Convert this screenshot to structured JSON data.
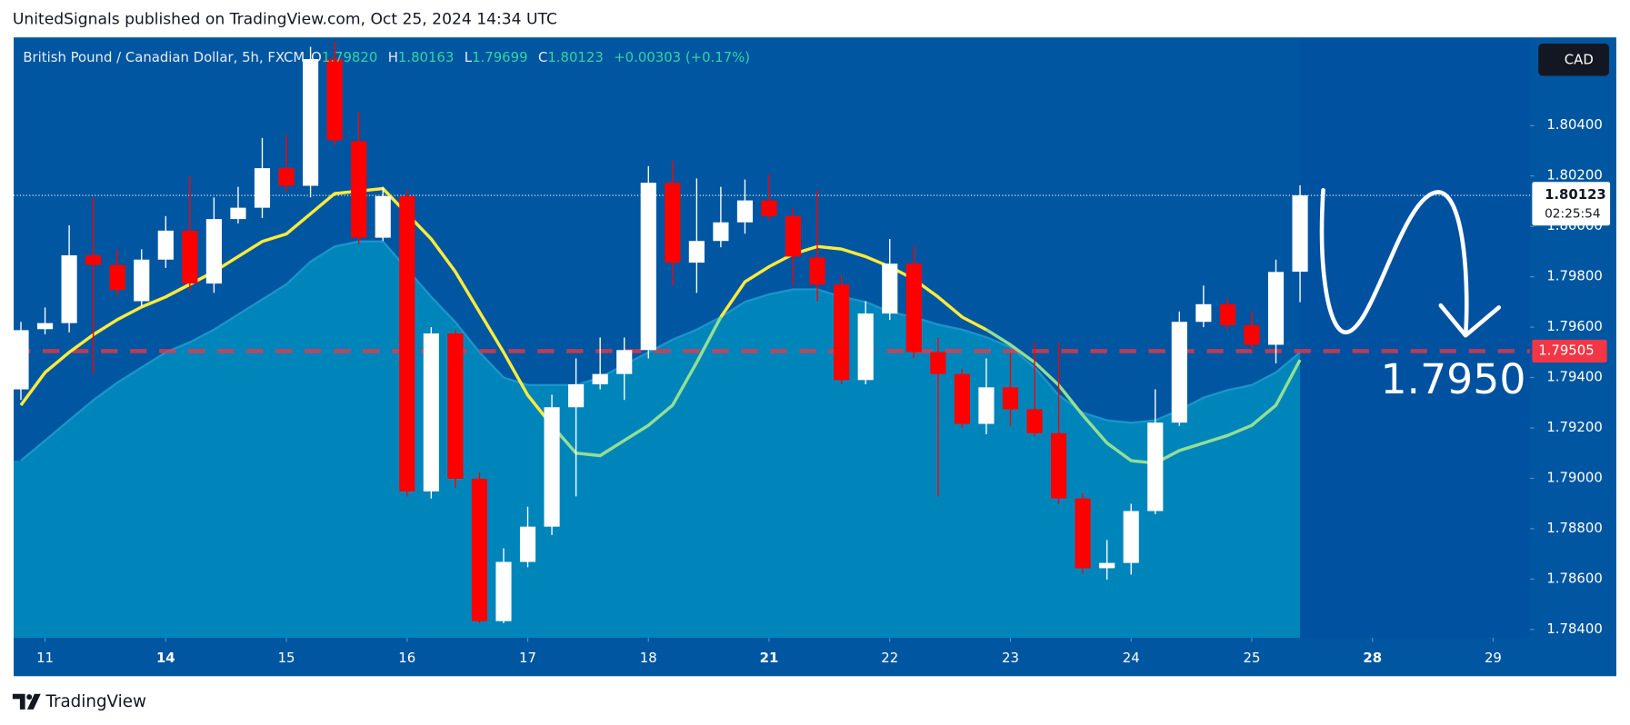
{
  "header": {
    "text": "UnitedSignals published on TradingView.com, Oct 25, 2024 14:34 UTC"
  },
  "footer": {
    "brand": "TradingView"
  },
  "chart_data": {
    "type": "candlestick",
    "legend": {
      "symbol": "British Pound / Canadian Dollar, 5h, FXCM",
      "fields": [
        {
          "key": "O",
          "value": "1.79820"
        },
        {
          "key": "H",
          "value": "1.80163"
        },
        {
          "key": "L",
          "value": "1.79699"
        },
        {
          "key": "C",
          "value": "1.80123"
        }
      ],
      "change": "+0.00303 (+0.17%)"
    },
    "currency": "CAD",
    "up_color": "#ffffff",
    "down_color": "#ff0000",
    "ohlc": [
      [
        1.79353,
        1.79621,
        1.79311,
        1.79588
      ],
      [
        1.79592,
        1.79678,
        1.79571,
        1.79616
      ],
      [
        1.79616,
        1.80004,
        1.79579,
        1.79885
      ],
      [
        1.79885,
        1.80115,
        1.79414,
        1.79847
      ],
      [
        1.79847,
        1.79909,
        1.79724,
        1.79748
      ],
      [
        1.79703,
        1.79909,
        1.79682,
        1.79868
      ],
      [
        1.79868,
        1.80041,
        1.79835,
        1.79983
      ],
      [
        1.79983,
        1.80198,
        1.79744,
        1.79773
      ],
      [
        1.79773,
        1.80115,
        1.79736,
        1.80029
      ],
      [
        1.80029,
        1.80157,
        1.80012,
        1.80074
      ],
      [
        1.80074,
        1.80351,
        1.80033,
        1.80231
      ],
      [
        1.80231,
        1.80363,
        1.80136,
        1.80161
      ],
      [
        1.80161,
        1.80713,
        1.80115,
        1.80664
      ],
      [
        1.80664,
        1.80734,
        1.80322,
        1.80342
      ],
      [
        1.80338,
        1.80454,
        1.7993,
        1.79955
      ],
      [
        1.79955,
        1.80157,
        1.79942,
        1.8012
      ],
      [
        1.8012,
        1.80144,
        1.78928,
        1.78948
      ],
      [
        1.78948,
        1.796,
        1.7892,
        1.79575
      ],
      [
        1.79575,
        1.79588,
        1.78961,
        1.78998
      ],
      [
        1.78998,
        1.79023,
        1.78425,
        1.78433
      ],
      [
        1.78433,
        1.78722,
        1.78425,
        1.78668
      ],
      [
        1.78668,
        1.78887,
        1.78647,
        1.78808
      ],
      [
        1.78808,
        1.79332,
        1.78775,
        1.79282
      ],
      [
        1.79282,
        1.79476,
        1.78928,
        1.79373
      ],
      [
        1.79373,
        1.79559,
        1.79353,
        1.79414
      ],
      [
        1.79414,
        1.79559,
        1.79311,
        1.79509
      ],
      [
        1.79509,
        1.80239,
        1.79476,
        1.80173
      ],
      [
        1.80173,
        1.8026,
        1.79765,
        1.79856
      ],
      [
        1.79856,
        1.8019,
        1.79736,
        1.79942
      ],
      [
        1.79942,
        1.80157,
        1.79917,
        1.80016
      ],
      [
        1.80016,
        1.80186,
        1.79971,
        1.80103
      ],
      [
        1.80103,
        1.80206,
        1.80025,
        1.80041
      ],
      [
        1.80041,
        1.80074,
        1.79765,
        1.7988
      ],
      [
        1.79876,
        1.80144,
        1.79703,
        1.79769
      ],
      [
        1.79769,
        1.79806,
        1.79373,
        1.7939
      ],
      [
        1.7939,
        1.79703,
        1.79373,
        1.79654
      ],
      [
        1.79654,
        1.7995,
        1.79629,
        1.79852
      ],
      [
        1.79852,
        1.79922,
        1.79476,
        1.79501
      ],
      [
        1.79501,
        1.79559,
        1.78928,
        1.79414
      ],
      [
        1.79414,
        1.79435,
        1.792,
        1.79216
      ],
      [
        1.79216,
        1.79476,
        1.79175,
        1.79361
      ],
      [
        1.79361,
        1.79497,
        1.79208,
        1.79274
      ],
      [
        1.79274,
        1.79538,
        1.79167,
        1.79179
      ],
      [
        1.79179,
        1.79538,
        1.78899,
        1.7892
      ],
      [
        1.7892,
        1.7894,
        1.78623,
        1.78643
      ],
      [
        1.78643,
        1.78755,
        1.78598,
        1.78664
      ],
      [
        1.78664,
        1.78899,
        1.78618,
        1.7887
      ],
      [
        1.7887,
        1.79353,
        1.78858,
        1.79221
      ],
      [
        1.79221,
        1.79662,
        1.79208,
        1.79621
      ],
      [
        1.79621,
        1.79765,
        1.796,
        1.79691
      ],
      [
        1.79691,
        1.79715,
        1.79588,
        1.79608
      ],
      [
        1.79608,
        1.79662,
        1.79505,
        1.7953
      ],
      [
        1.7953,
        1.79868,
        1.79456,
        1.79819
      ],
      [
        1.7982,
        1.80163,
        1.79699,
        1.80123
      ]
    ],
    "area": {
      "color": "#0085bb",
      "line_color": "#1b95cc",
      "values": [
        1.7907,
        1.7915,
        1.7923,
        1.7931,
        1.7938,
        1.7944,
        1.795,
        1.7954,
        1.7959,
        1.7965,
        1.7971,
        1.7977,
        1.7986,
        1.7992,
        1.7994,
        1.7994,
        1.7983,
        1.7972,
        1.7962,
        1.795,
        1.794,
        1.7937,
        1.7937,
        1.7937,
        1.794,
        1.7945,
        1.795,
        1.7955,
        1.7959,
        1.7964,
        1.797,
        1.7973,
        1.7975,
        1.7975,
        1.7972,
        1.797,
        1.7966,
        1.7964,
        1.7961,
        1.7959,
        1.7956,
        1.7952,
        1.7944,
        1.7933,
        1.7926,
        1.7923,
        1.7922,
        1.7923,
        1.7927,
        1.7932,
        1.7935,
        1.7937,
        1.7942,
        1.795
      ]
    },
    "series": [
      {
        "color": "#ffeb3b",
        "values": [
          1.7929,
          1.7942,
          1.795,
          1.7957,
          1.7963,
          1.7968,
          1.7972,
          1.7977,
          1.7982,
          1.7988,
          1.7994,
          1.7997,
          1.8005,
          1.8013,
          1.8014,
          1.8015,
          1.8005,
          1.7995,
          1.7982,
          1.7966,
          1.795,
          1.7933,
          1.7921,
          null,
          null,
          null,
          null,
          null,
          null,
          1.7964,
          1.7978,
          1.7984,
          1.7989,
          1.7992,
          1.7991,
          1.7988,
          1.7984,
          1.7979,
          1.7972,
          1.7964,
          1.7959,
          null,
          null,
          null,
          null,
          null,
          null,
          null,
          null,
          null,
          null,
          null,
          null,
          null
        ]
      },
      {
        "color": "#93df93",
        "values": [
          null,
          null,
          null,
          null,
          null,
          null,
          null,
          null,
          null,
          null,
          null,
          null,
          null,
          null,
          null,
          null,
          null,
          null,
          null,
          null,
          null,
          null,
          1.7921,
          1.791,
          1.7909,
          1.7915,
          1.7921,
          1.7929,
          1.7946,
          1.7964,
          null,
          null,
          null,
          null,
          null,
          null,
          null,
          null,
          null,
          null,
          1.7959,
          1.7953,
          1.7946,
          1.7937,
          1.7925,
          1.7914,
          1.7907,
          1.7906,
          1.7911,
          1.7914,
          1.7917,
          1.7921,
          1.7929,
          1.7947
        ]
      }
    ],
    "hline": {
      "value": 1.79505,
      "color": "#f23645"
    },
    "last_price": {
      "value": 1.80123,
      "countdown": "02:25:54"
    },
    "annotation": {
      "text": "1.7950"
    },
    "xlim": [
      -0.3,
      62.53
    ],
    "xticks": [
      {
        "value": 1,
        "label": "11"
      },
      {
        "value": 6,
        "label": "14",
        "bold": true
      },
      {
        "value": 11,
        "label": "15"
      },
      {
        "value": 16,
        "label": "16"
      },
      {
        "value": 21,
        "label": "17"
      },
      {
        "value": 26,
        "label": "18"
      },
      {
        "value": 31,
        "label": "21",
        "bold": true
      },
      {
        "value": 36,
        "label": "22"
      },
      {
        "value": 41,
        "label": "23"
      },
      {
        "value": 46,
        "label": "24"
      },
      {
        "value": 51,
        "label": "25"
      },
      {
        "value": 56,
        "label": "28",
        "bold": true
      },
      {
        "value": 61,
        "label": "29"
      }
    ],
    "ylim": [
      1.78367,
      1.80746
    ],
    "yticks": [
      {
        "value": 1.804,
        "label": "1.80400"
      },
      {
        "value": 1.802,
        "label": "1.80200"
      },
      {
        "value": 1.8,
        "label": "1.80000"
      },
      {
        "value": 1.798,
        "label": "1.79800"
      },
      {
        "value": 1.796,
        "label": "1.79600"
      },
      {
        "value": 1.794,
        "label": "1.79400"
      },
      {
        "value": 1.792,
        "label": "1.79200"
      },
      {
        "value": 1.79,
        "label": "1.79000"
      },
      {
        "value": 1.788,
        "label": "1.78800"
      },
      {
        "value": 1.786,
        "label": "1.78600"
      },
      {
        "value": 1.784,
        "label": "1.78400"
      }
    ]
  }
}
